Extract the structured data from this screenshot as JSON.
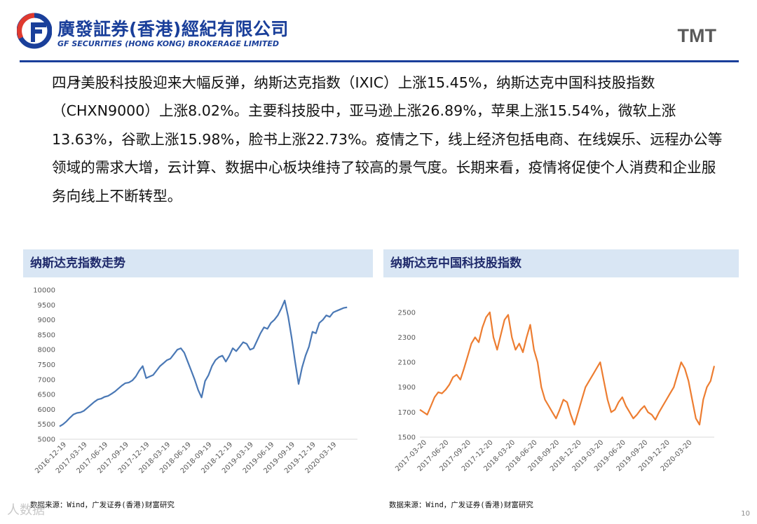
{
  "header": {
    "company_cn": "廣發証券(香港)經紀有限公司",
    "company_en": "GF SECURITIES (HONG KONG) BROKERAGE LIMITED",
    "section": "TMT"
  },
  "bullet_marker": "➢",
  "paragraph": "四月美股科技股迎来大幅反弹，纳斯达克指数（IXIC）上涨15.45%，纳斯达克中国科技股指数（CHXN9000）上涨8.02%。主要科技股中，亚马逊上涨26.89%，苹果上涨15.54%，微软上涨13.63%，谷歌上涨15.98%，脸书上涨22.73%。疫情之下，线上经济包括电商、在线娱乐、远程办公等领域的需求大增，云计算、数据中心板块维持了较高的景气度。长期来看，疫情将促使个人消费和企业服务向线上不断转型。",
  "charts_meta": {
    "left_title": "纳斯达克指数走势",
    "right_title": "纳斯达克中国科技股指数",
    "left_source": "数据来源：Wind，广发证券(香港)财富研究",
    "right_source": "数据来源：Wind，广发证券(香港)财富研究"
  },
  "watermark": "人数据",
  "page_number": "10",
  "colors": {
    "brand": "#1a3f9a",
    "left_series": "#4a78b5",
    "right_series": "#ed7d31",
    "title_band": "#d9e6f4"
  },
  "chart_data": [
    {
      "type": "line",
      "title": "纳斯达克指数走势",
      "x_tick_labels": [
        "2016-12-19",
        "2017-03-19",
        "2017-06-19",
        "2017-09-19",
        "2017-12-19",
        "2018-03-19",
        "2018-06-19",
        "2018-09-19",
        "2018-12-19",
        "2019-03-19",
        "2019-06-19",
        "2019-09-19",
        "2019-12-19",
        "2020-03-19"
      ],
      "y_ticks": [
        5000,
        5500,
        6000,
        6500,
        7000,
        7500,
        8000,
        8500,
        9000,
        9500,
        10000
      ],
      "ylim": [
        5000,
        10000
      ],
      "x_range": [
        0,
        43
      ],
      "series": [
        {
          "name": "纳斯达克指数",
          "x": [
            0,
            0.5,
            1,
            1.5,
            2,
            2.5,
            3,
            3.5,
            4,
            4.5,
            5,
            5.5,
            6,
            6.5,
            7,
            7.5,
            8,
            8.5,
            9,
            9.5,
            10,
            10.5,
            11,
            11.5,
            12,
            12.5,
            13,
            13.5,
            14,
            14.5,
            15,
            15.5,
            16,
            16.5,
            17,
            17.5,
            18,
            18.5,
            19,
            19.5,
            20,
            20.5,
            21,
            21.5,
            22,
            22.5,
            23,
            23.5,
            24,
            24.5,
            25,
            25.5,
            26,
            26.5,
            27,
            27.5,
            28,
            28.5,
            29,
            29.5,
            30,
            30.5,
            31,
            31.5,
            32,
            32.5,
            33,
            33.5,
            34,
            34.5,
            35,
            35.5,
            36,
            36.5,
            37,
            37.5,
            38,
            38.5,
            39,
            39.5,
            40,
            40.5,
            41,
            41.5
          ],
          "values": [
            5430,
            5500,
            5600,
            5720,
            5830,
            5880,
            5900,
            5950,
            6050,
            6150,
            6250,
            6330,
            6360,
            6420,
            6450,
            6520,
            6600,
            6700,
            6800,
            6880,
            6900,
            6970,
            7100,
            7300,
            7450,
            7050,
            7100,
            7150,
            7300,
            7450,
            7550,
            7650,
            7700,
            7850,
            8000,
            8050,
            7900,
            7600,
            7300,
            7000,
            6650,
            6400,
            6950,
            7150,
            7450,
            7650,
            7750,
            7800,
            7600,
            7800,
            8050,
            7950,
            8100,
            8250,
            8200,
            8000,
            8050,
            8300,
            8550,
            8750,
            8700,
            8900,
            9000,
            9150,
            9380,
            9650,
            9100,
            8400,
            7600,
            6850,
            7400,
            7800,
            8100,
            8600,
            8550,
            8900,
            9000,
            9150,
            9100,
            9250,
            9300,
            9350,
            9400,
            9420
          ]
        }
      ]
    },
    {
      "type": "line",
      "title": "纳斯达克中国科技股指数",
      "x_tick_labels": [
        "2017-03-20",
        "2017-06-20",
        "2017-09-20",
        "2017-12-20",
        "2018-03-20",
        "2018-06-20",
        "2018-09-20",
        "2018-12-20",
        "2019-03-20",
        "2019-06-20",
        "2019-09-20",
        "2019-12-20",
        "2020-03-20"
      ],
      "y_ticks": [
        1500,
        1700,
        1900,
        2100,
        2300,
        2500
      ],
      "ylim": [
        1500,
        2600
      ],
      "x_range": [
        0,
        40
      ],
      "series": [
        {
          "name": "纳斯达克中国科技股指数",
          "x": [
            0,
            0.5,
            1,
            1.5,
            2,
            2.5,
            3,
            3.5,
            4,
            4.5,
            5,
            5.5,
            6,
            6.5,
            7,
            7.5,
            8,
            8.5,
            9,
            9.5,
            10,
            10.5,
            11,
            11.5,
            12,
            12.5,
            13,
            13.5,
            14,
            14.5,
            15,
            15.5,
            16,
            16.5,
            17,
            17.5,
            18,
            18.5,
            19,
            19.5,
            20,
            20.5,
            21,
            21.5,
            22,
            22.5,
            23,
            23.5,
            24,
            24.5,
            25,
            25.5,
            26,
            26.5,
            27,
            27.5,
            28,
            28.5,
            29,
            29.5,
            30,
            30.5,
            31,
            31.5,
            32,
            32.5,
            33,
            33.5,
            34,
            34.5,
            35,
            35.5,
            36,
            36.5,
            37,
            37.5,
            38,
            38.5,
            39,
            39.5,
            40
          ],
          "values": [
            1720,
            1700,
            1680,
            1750,
            1820,
            1860,
            1850,
            1880,
            1920,
            1980,
            2000,
            1960,
            2050,
            2150,
            2250,
            2300,
            2260,
            2380,
            2460,
            2500,
            2300,
            2200,
            2320,
            2440,
            2480,
            2300,
            2200,
            2250,
            2180,
            2300,
            2400,
            2200,
            2100,
            1900,
            1800,
            1750,
            1700,
            1650,
            1720,
            1800,
            1780,
            1680,
            1600,
            1700,
            1800,
            1900,
            1950,
            2000,
            2050,
            2100,
            1950,
            1800,
            1700,
            1720,
            1780,
            1820,
            1750,
            1700,
            1650,
            1680,
            1720,
            1750,
            1700,
            1680,
            1640,
            1700,
            1750,
            1800,
            1850,
            1900,
            2000,
            2100,
            2050,
            1950,
            1800,
            1650,
            1600,
            1800,
            1900,
            1950,
            2070
          ]
        }
      ]
    }
  ]
}
